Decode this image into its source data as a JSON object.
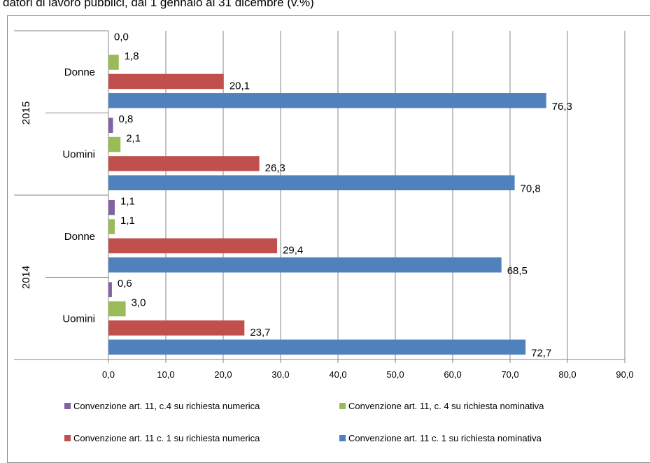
{
  "chart_data": {
    "type": "bar",
    "orientation": "horizontal",
    "title": "datori di lavoro pubblici, dal 1 gennaio al 31 dicembre (v.%)",
    "xlim": [
      0,
      90
    ],
    "x_ticks": [
      "0,0",
      "10,0",
      "20,0",
      "30,0",
      "40,0",
      "50,0",
      "60,0",
      "70,0",
      "80,0",
      "90,0"
    ],
    "grid": true,
    "legend_position": "bottom",
    "groups": [
      {
        "label": "2015",
        "categories": [
          "Donne",
          "Uomini"
        ]
      },
      {
        "label": "2014",
        "categories": [
          "Donne",
          "Uomini"
        ]
      }
    ],
    "categories": [
      {
        "group": "2015",
        "label": "Donne"
      },
      {
        "group": "2015",
        "label": "Uomini"
      },
      {
        "group": "2014",
        "label": "Donne"
      },
      {
        "group": "2014",
        "label": "Uomini"
      }
    ],
    "series": [
      {
        "name": "Convenzione art. 11, c.4 su richiesta numerica",
        "color": "#8064A2",
        "values": [
          0.0,
          0.8,
          1.1,
          0.6
        ],
        "labels": [
          "0,0",
          "0,8",
          "1,1",
          "0,6"
        ]
      },
      {
        "name": "Convenzione art. 11, c. 4 su richiesta nominativa",
        "color": "#9BBB59",
        "values": [
          1.8,
          2.1,
          1.1,
          3.0
        ],
        "labels": [
          "1,8",
          "2,1",
          "1,1",
          "3,0"
        ]
      },
      {
        "name": "Convenzione art. 11 c. 1 su richiesta numerica",
        "color": "#C0504D",
        "values": [
          20.1,
          26.3,
          29.4,
          23.7
        ],
        "labels": [
          "20,1",
          "26,3",
          "29,4",
          "23,7"
        ]
      },
      {
        "name": "Convenzione art. 11 c. 1 su richiesta nominativa",
        "color": "#4F81BD",
        "values": [
          76.3,
          70.8,
          68.5,
          72.7
        ],
        "labels": [
          "76,3",
          "70,8",
          "68,5",
          "72,7"
        ]
      }
    ],
    "legend_order": [
      0,
      1,
      2,
      3
    ]
  }
}
